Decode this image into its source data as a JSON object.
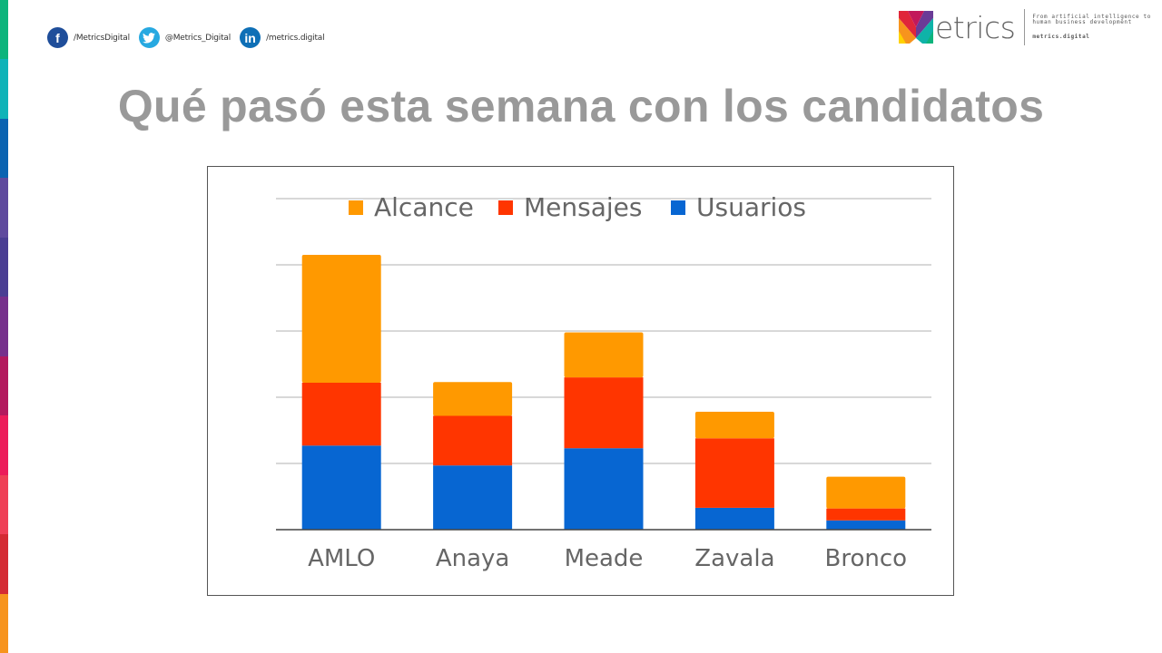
{
  "brand": {
    "stripe_colors": [
      "#0db47c",
      "#0fb3b8",
      "#0b63b1",
      "#5f4a9e",
      "#4a3e93",
      "#76308c",
      "#b3195e",
      "#ec1c5a",
      "#ef4056",
      "#d42b33",
      "#f7941d"
    ],
    "logo_word": "etrics",
    "tagline_line1": "From artificial intelligence to",
    "tagline_line2": "human business development",
    "url": "metrics.digital"
  },
  "social": [
    {
      "icon": "facebook-icon",
      "glyph": "f",
      "color": "#1f4e9a",
      "label": "/MetricsDigital"
    },
    {
      "icon": "twitter-icon",
      "glyph": "t",
      "color": "#27a9e1",
      "label": "@Metrics_Digital"
    },
    {
      "icon": "linkedin-icon",
      "glyph": "in",
      "color": "#0e6fb6",
      "label": "/metrics.digital"
    }
  ],
  "title": "Qué pasó esta semana con los candidatos",
  "chart_data": {
    "type": "bar",
    "stacked": true,
    "title": "",
    "xlabel": "",
    "ylabel": "",
    "units_note": "no y-axis labels shown; values estimated in gridline units",
    "categories": [
      "AMLO",
      "Anaya",
      "Meade",
      "Zavala",
      "Bronco"
    ],
    "series": [
      {
        "name": "Usuarios",
        "color": "#0766d2",
        "values": [
          1.27,
          0.97,
          1.23,
          0.33,
          0.14
        ]
      },
      {
        "name": "Mensajes",
        "color": "#ff3500",
        "values": [
          0.95,
          0.75,
          1.07,
          1.05,
          0.18
        ]
      },
      {
        "name": "Alcance",
        "color": "#ff9900",
        "values": [
          1.93,
          0.51,
          0.68,
          0.4,
          0.48
        ]
      }
    ],
    "legend_order": [
      "Alcance",
      "Mensajes",
      "Usuarios"
    ],
    "legend_position": "top",
    "ylim": [
      0,
      5
    ],
    "gridlines": [
      1,
      2,
      3,
      4,
      5
    ],
    "grid": true
  }
}
